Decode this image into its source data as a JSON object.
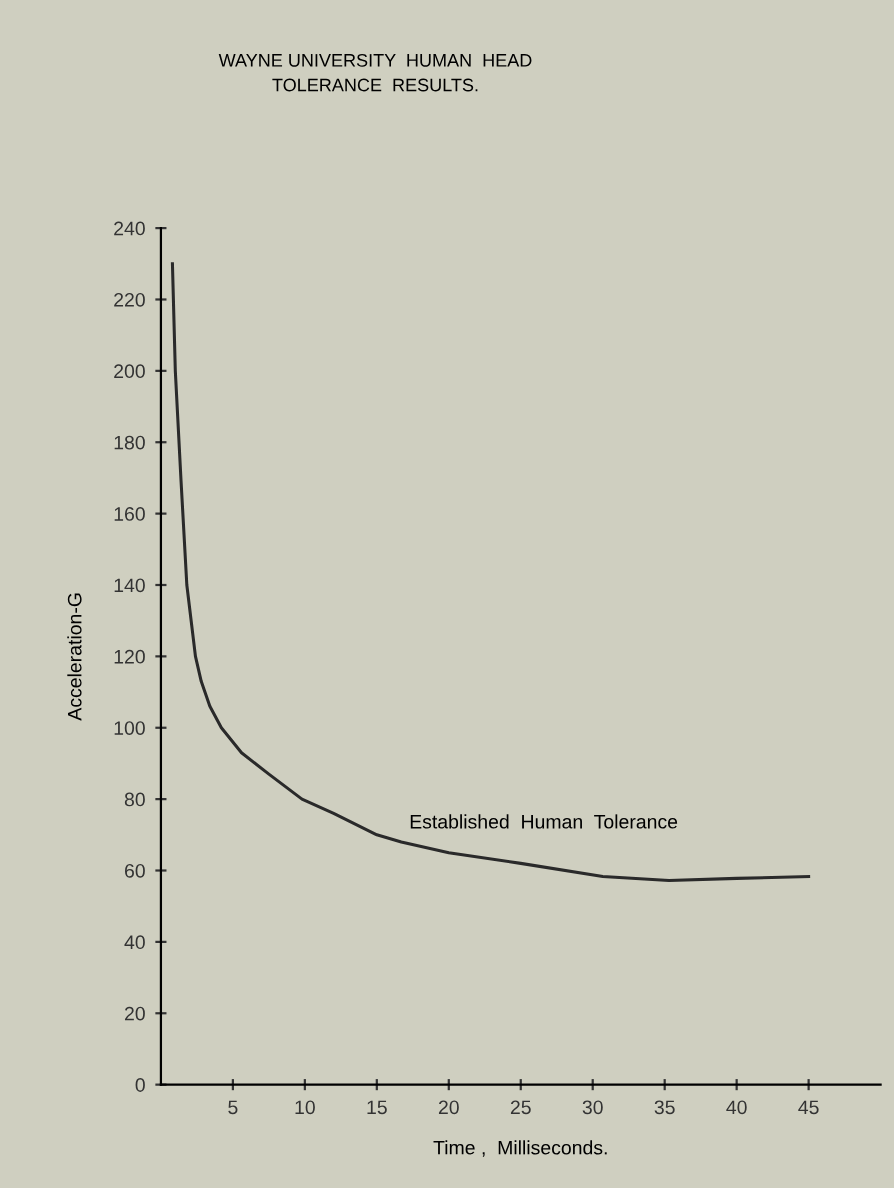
{
  "chart_data": {
    "type": "line",
    "title": "WAYNE UNIVERSITY  HUMAN  HEAD\nTOLERANCE  RESULTS.",
    "xlabel": "Time ,  Milliseconds.",
    "ylabel": "Acceleration-G",
    "series": [
      {
        "color": "#2a2a2a",
        "x": [
          0.8,
          1.0,
          1.4,
          1.8,
          2.4,
          2.8,
          3.4,
          4.2,
          5.6,
          7.5,
          9.8,
          12,
          15,
          16.7,
          20,
          25,
          30.7,
          35.3,
          40,
          45
        ],
        "values": [
          230,
          200,
          169,
          140,
          120,
          113,
          106,
          100,
          93,
          87,
          80,
          76,
          70,
          68,
          65,
          62,
          58.3,
          57.2,
          57.8,
          58.3
        ]
      }
    ],
    "xlim": [
      0,
      50
    ],
    "xticks": [
      5,
      10,
      15,
      20,
      25,
      30,
      35,
      40,
      45
    ],
    "ylim": [
      0,
      240
    ],
    "yticks": [
      0,
      20,
      40,
      60,
      80,
      100,
      120,
      140,
      160,
      180,
      200,
      220,
      240
    ],
    "grid": false,
    "legend": false,
    "marker": "none",
    "line_style": "solid",
    "annotations": [
      "Established  Human  Tolerance"
    ]
  }
}
